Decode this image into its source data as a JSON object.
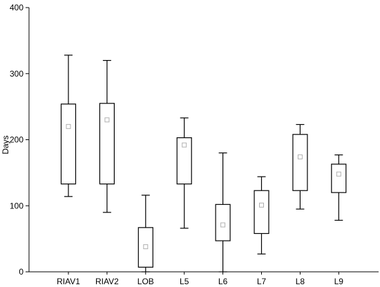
{
  "chart_data": {
    "type": "box",
    "title": "",
    "xlabel": "",
    "ylabel": "Days",
    "ylim": [
      0,
      400
    ],
    "yticks": [
      0,
      100,
      200,
      300,
      400
    ],
    "grid": false,
    "legend": "none",
    "categories": [
      "RIAV1",
      "RIAV2",
      "LOB",
      "L5",
      "L6",
      "L7",
      "L8",
      "L9"
    ],
    "boxes": [
      {
        "category": "RIAV1",
        "whisker_low": 114,
        "q1": 133,
        "mean": 220,
        "q3": 254,
        "whisker_high": 328
      },
      {
        "category": "RIAV2",
        "whisker_low": 90,
        "q1": 133,
        "mean": 230,
        "q3": 255,
        "whisker_high": 320
      },
      {
        "category": "LOB",
        "whisker_low": 0,
        "q1": 7,
        "mean": 38,
        "q3": 67,
        "whisker_high": 116
      },
      {
        "category": "L5",
        "whisker_low": 66,
        "q1": 133,
        "mean": 192,
        "q3": 203,
        "whisker_high": 233
      },
      {
        "category": "L6",
        "whisker_low": 0,
        "q1": 47,
        "mean": 71,
        "q3": 102,
        "whisker_high": 180
      },
      {
        "category": "L7",
        "whisker_low": 27,
        "q1": 58,
        "mean": 101,
        "q3": 123,
        "whisker_high": 144
      },
      {
        "category": "L8",
        "whisker_low": 95,
        "q1": 123,
        "mean": 174,
        "q3": 208,
        "whisker_high": 223
      },
      {
        "category": "L9",
        "whisker_low": 78,
        "q1": 120,
        "mean": 148,
        "q3": 163,
        "whisker_high": 177
      }
    ],
    "colors": {
      "line": "#000000",
      "marker": "#b0b0b0",
      "background": "#ffffff"
    }
  }
}
